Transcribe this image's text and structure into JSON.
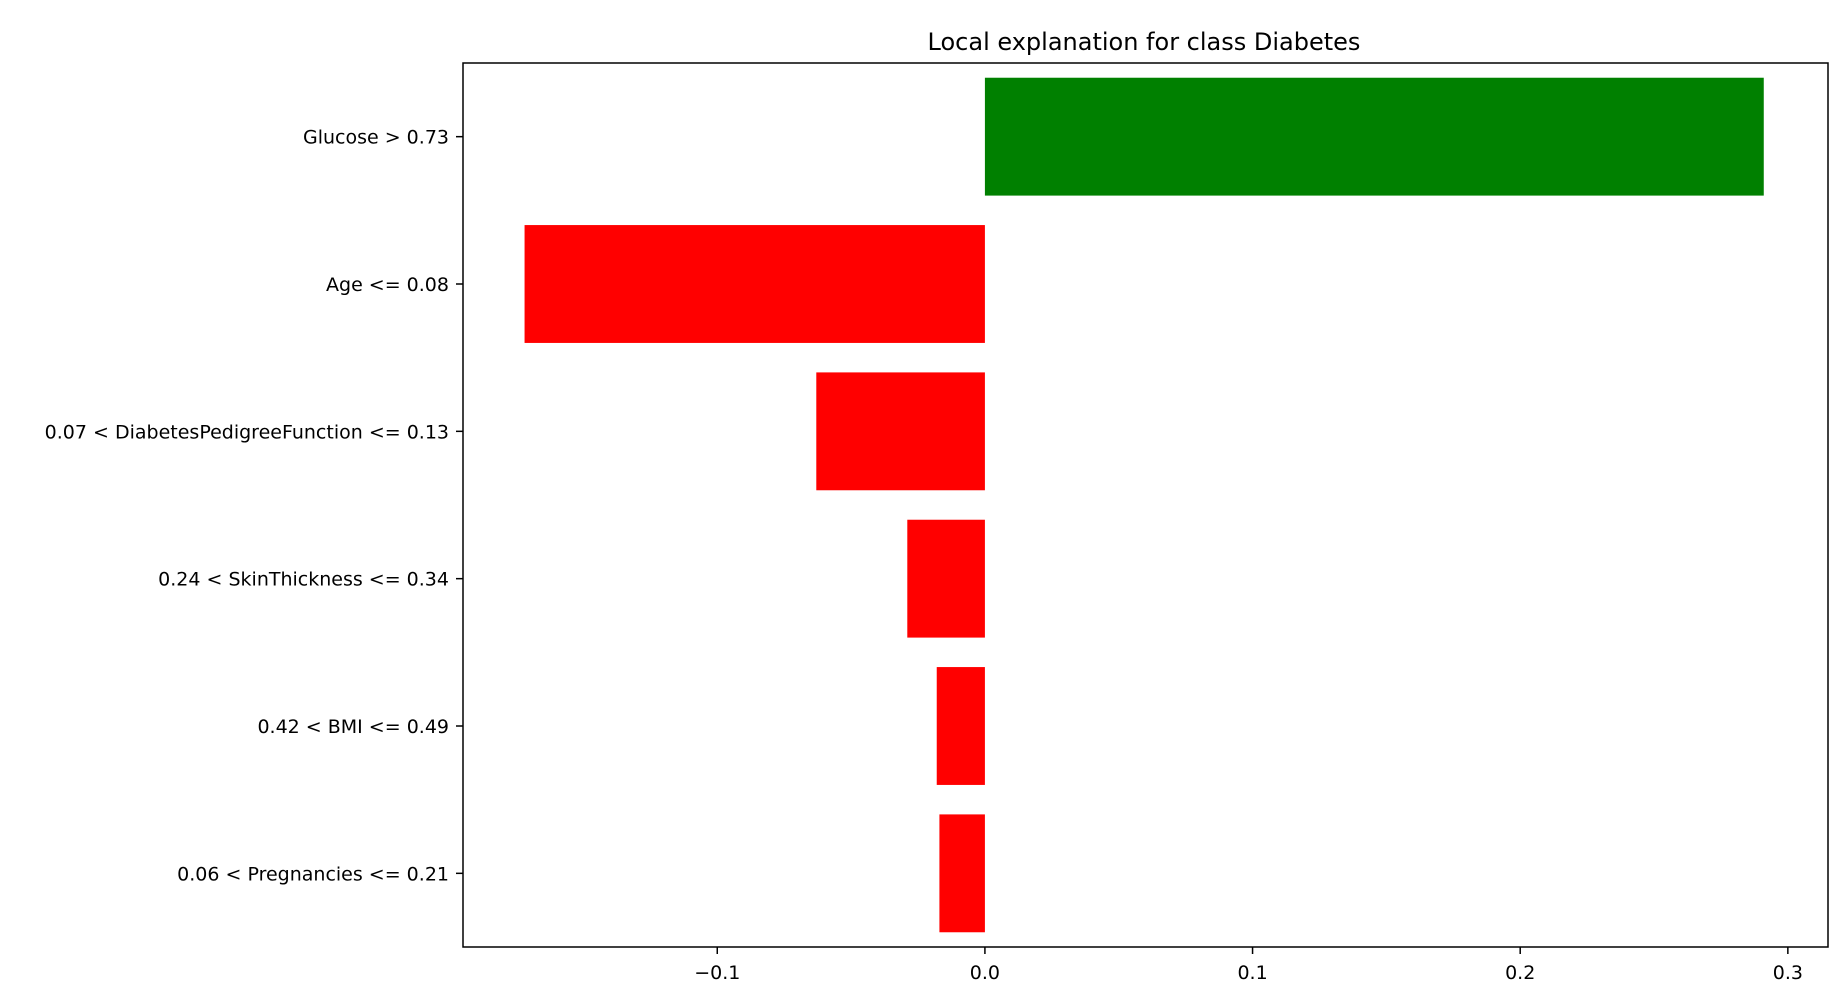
{
  "chart_data": {
    "type": "bar",
    "orientation": "horizontal",
    "title": "Local explanation for class Diabetes",
    "xlabel": "",
    "ylabel": "",
    "categories": [
      "Glucose > 0.73",
      "Age <= 0.08",
      "0.07 < DiabetesPedigreeFunction <= 0.13",
      "0.24 < SkinThickness <= 0.34",
      "0.42 < BMI <= 0.49",
      "0.06 < Pregnancies <= 0.21"
    ],
    "values": [
      0.291,
      -0.172,
      -0.063,
      -0.029,
      -0.018,
      -0.017
    ],
    "positive_color": "#008000",
    "negative_color": "#ff0000",
    "xlim": [
      -0.195,
      0.315
    ],
    "x_ticks": [
      -0.1,
      0.0,
      0.1,
      0.2,
      0.3
    ],
    "x_tick_labels": [
      "−0.1",
      "0.0",
      "0.1",
      "0.2",
      "0.3"
    ],
    "grid": false,
    "legend": "none"
  }
}
